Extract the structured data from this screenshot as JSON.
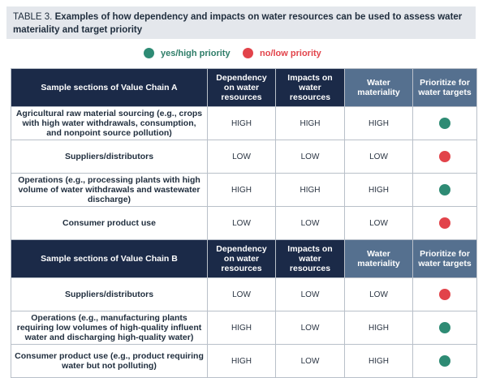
{
  "title": {
    "number": "TABLE 3.",
    "text": "Examples of how dependency and impacts on water resources can be used to assess water materiality and target priority"
  },
  "legend": {
    "yes_label": "yes/high priority",
    "no_label": "no/low priority",
    "yes_color": "#2e8b74",
    "no_color": "#e2434a"
  },
  "sections": [
    {
      "headers": {
        "section": "Sample sections of Value Chain A",
        "dependency": "Dependency on water resources",
        "impacts": "Impacts on water resources",
        "materiality": "Water materiality",
        "prioritize": "Prioritize for water targets"
      },
      "rows": [
        {
          "label": "Agricultural raw material sourcing (e.g., crops with high water withdrawals, consumption, and nonpoint source pollution)",
          "dependency": "HIGH",
          "impacts": "HIGH",
          "materiality": "HIGH",
          "priority": "yes"
        },
        {
          "label": "Suppliers/distributors",
          "dependency": "LOW",
          "impacts": "LOW",
          "materiality": "LOW",
          "priority": "no"
        },
        {
          "label": "Operations (e.g., processing plants with high volume of water withdrawals and wastewater discharge)",
          "dependency": "HIGH",
          "impacts": "HIGH",
          "materiality": "HIGH",
          "priority": "yes"
        },
        {
          "label": "Consumer product use",
          "dependency": "LOW",
          "impacts": "LOW",
          "materiality": "LOW",
          "priority": "no"
        }
      ]
    },
    {
      "headers": {
        "section": "Sample sections of Value Chain B",
        "dependency": "Dependency on water resources",
        "impacts": "Impacts on water resources",
        "materiality": "Water materiality",
        "prioritize": "Prioritize for water targets"
      },
      "rows": [
        {
          "label": "Suppliers/distributors",
          "dependency": "LOW",
          "impacts": "LOW",
          "materiality": "LOW",
          "priority": "no"
        },
        {
          "label": "Operations (e.g., manufacturing plants requiring low volumes of high-quality influent water and discharging high-quality water)",
          "dependency": "HIGH",
          "impacts": "LOW",
          "materiality": "HIGH",
          "priority": "yes"
        },
        {
          "label": "Consumer product use (e.g., product requiring water but not polluting)",
          "dependency": "HIGH",
          "impacts": "LOW",
          "materiality": "HIGH",
          "priority": "yes"
        }
      ]
    }
  ]
}
